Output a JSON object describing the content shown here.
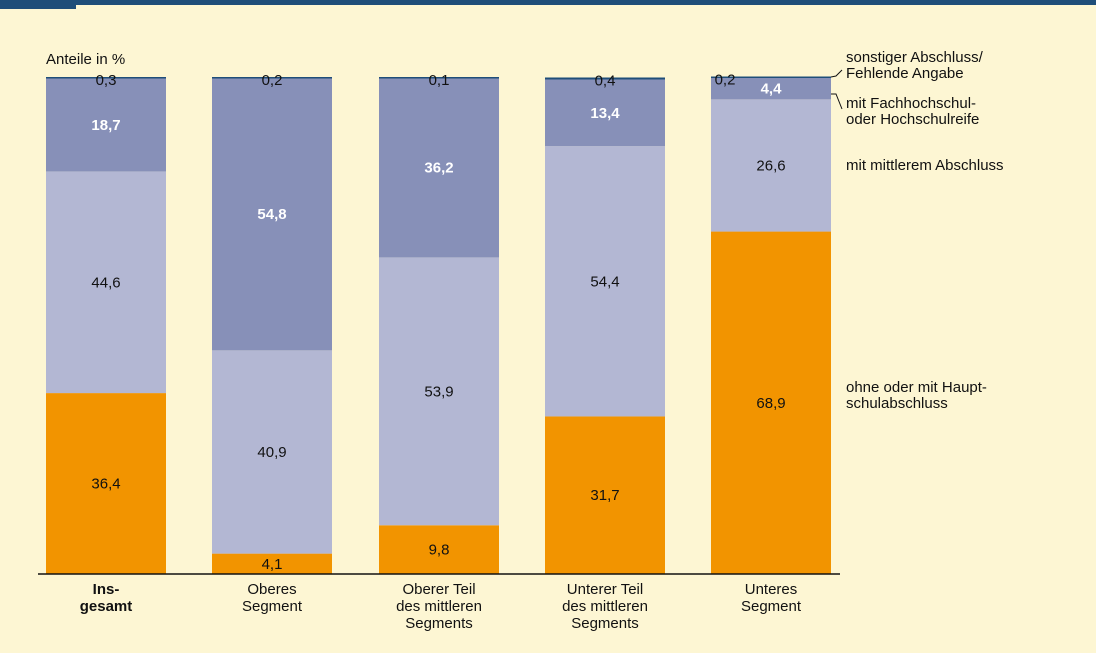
{
  "chart_data": {
    "type": "bar",
    "stacked": true,
    "ylabel": "Anteile in %",
    "ylim": [
      0,
      100
    ],
    "grid": false,
    "categories": [
      [
        "Ins-",
        "gesamt"
      ],
      [
        "Oberes",
        "Segment"
      ],
      [
        "Oberer Teil",
        "des mittleren",
        "Segments"
      ],
      [
        "Unterer Teil",
        "des mittleren",
        "Segments"
      ],
      [
        "Unteres",
        "Segment"
      ]
    ],
    "category_bold": [
      true,
      false,
      false,
      false,
      false
    ],
    "series": [
      {
        "name": [
          "ohne oder mit Haupt-",
          "schulabschluss"
        ],
        "color": "#f29400",
        "label_color": "#111111",
        "values": [
          36.4,
          4.1,
          9.8,
          31.7,
          68.9
        ],
        "labels": [
          "36,4",
          "4,1",
          "9,8",
          "31,7",
          "68,9"
        ]
      },
      {
        "name": [
          "mit mittlerem Abschluss"
        ],
        "color": "#b3b7d3",
        "label_color": "#111111",
        "values": [
          44.6,
          40.9,
          53.9,
          54.4,
          26.6
        ],
        "labels": [
          "44,6",
          "40,9",
          "53,9",
          "54,4",
          "26,6"
        ]
      },
      {
        "name": [
          "mit Fachhochschul-",
          "oder Hochschulreife"
        ],
        "color": "#8790b8",
        "label_color": "#ffffff",
        "label_bold": true,
        "values": [
          18.7,
          54.8,
          36.2,
          13.4,
          4.4
        ],
        "labels": [
          "18,7",
          "54,8",
          "36,2",
          "13,4",
          "4,4"
        ]
      },
      {
        "name": [
          "sonstiger Abschluss/",
          "Fehlende Angabe"
        ],
        "color": "#1f4e79",
        "label_color": "#111111",
        "values": [
          0.3,
          0.2,
          0.1,
          0.4,
          0.2
        ],
        "labels": [
          "0,3",
          "0,2",
          "0,1",
          "0,4",
          "0,2"
        ]
      }
    ],
    "legend_placement": "right"
  }
}
